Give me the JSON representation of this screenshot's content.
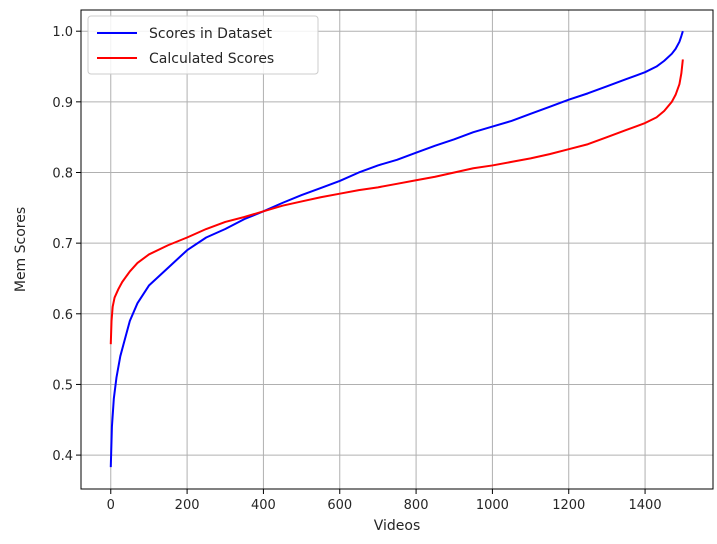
{
  "chart_data": {
    "type": "line",
    "title": "",
    "xlabel": "Videos",
    "ylabel": "Mem Scores",
    "xlim": [
      -78,
      1578
    ],
    "ylim": [
      0.352,
      1.03
    ],
    "xticks": [
      0,
      200,
      400,
      600,
      800,
      1000,
      1200,
      1400
    ],
    "yticks": [
      0.4,
      0.5,
      0.6,
      0.7,
      0.8,
      0.9,
      1.0
    ],
    "xtick_labels": [
      "0",
      "200",
      "400",
      "600",
      "800",
      "1000",
      "1200",
      "1400"
    ],
    "ytick_labels": [
      "0.4",
      "0.5",
      "0.6",
      "0.7",
      "0.8",
      "0.9",
      "1.0"
    ],
    "grid": true,
    "legend_position": "top-left",
    "series": [
      {
        "name": "Scores in Dataset",
        "color": "#0000ff",
        "x": [
          0,
          3,
          8,
          15,
          25,
          35,
          50,
          70,
          100,
          150,
          200,
          250,
          300,
          350,
          400,
          450,
          500,
          550,
          600,
          650,
          700,
          750,
          800,
          850,
          900,
          950,
          1000,
          1050,
          1100,
          1150,
          1200,
          1250,
          1300,
          1350,
          1400,
          1430,
          1450,
          1470,
          1480,
          1490,
          1495,
          1499
        ],
        "y": [
          0.383,
          0.44,
          0.48,
          0.51,
          0.54,
          0.56,
          0.59,
          0.615,
          0.64,
          0.665,
          0.69,
          0.708,
          0.72,
          0.734,
          0.745,
          0.757,
          0.768,
          0.778,
          0.788,
          0.8,
          0.81,
          0.818,
          0.828,
          0.838,
          0.847,
          0.857,
          0.865,
          0.873,
          0.883,
          0.893,
          0.903,
          0.912,
          0.922,
          0.932,
          0.942,
          0.95,
          0.958,
          0.968,
          0.975,
          0.985,
          0.993,
          1.0
        ]
      },
      {
        "name": "Calculated Scores",
        "color": "#ff0000",
        "x": [
          0,
          2,
          5,
          10,
          20,
          30,
          50,
          70,
          100,
          150,
          200,
          250,
          300,
          350,
          400,
          450,
          500,
          550,
          600,
          650,
          700,
          750,
          800,
          850,
          900,
          950,
          1000,
          1050,
          1100,
          1150,
          1200,
          1250,
          1300,
          1350,
          1400,
          1430,
          1450,
          1470,
          1480,
          1490,
          1495,
          1499
        ],
        "y": [
          0.557,
          0.59,
          0.61,
          0.623,
          0.635,
          0.645,
          0.66,
          0.672,
          0.684,
          0.697,
          0.708,
          0.72,
          0.73,
          0.737,
          0.745,
          0.753,
          0.759,
          0.765,
          0.77,
          0.775,
          0.779,
          0.784,
          0.789,
          0.794,
          0.8,
          0.806,
          0.81,
          0.815,
          0.82,
          0.826,
          0.833,
          0.84,
          0.85,
          0.86,
          0.87,
          0.878,
          0.887,
          0.9,
          0.91,
          0.925,
          0.94,
          0.96
        ]
      }
    ]
  }
}
